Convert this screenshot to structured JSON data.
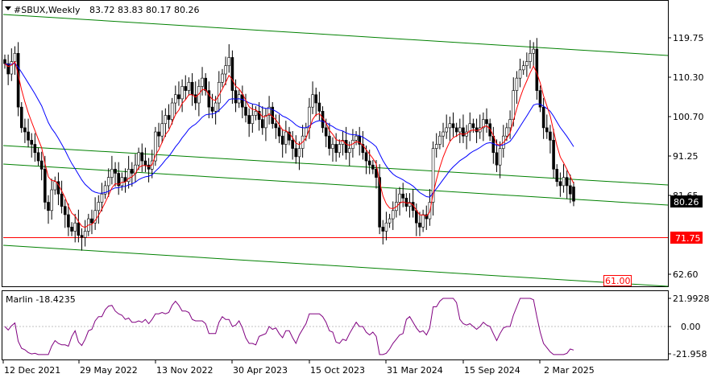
{
  "header": {
    "symbol_label": "#SBUX,Weekly",
    "ohlc_label": "83.72 83.83 80.17 80.26",
    "menu_icon": "triangle-down-icon"
  },
  "price_axis": {
    "ticks": [
      "119.75",
      "110.30",
      "100.70",
      "91.25",
      "81.65",
      "62.60"
    ],
    "current_price_label": "80.26",
    "level_label_red": "71.75",
    "target_label": "61.00"
  },
  "indicator": {
    "title": "Marlin -18.4235",
    "ticks": [
      "21.9928",
      "0.00",
      "-21.958"
    ]
  },
  "time_axis": {
    "labels": [
      "12 Dec 2021",
      "29 May 2022",
      "13 Nov 2022",
      "30 Apr 2023",
      "15 Oct 2023",
      "31 Mar 2024",
      "15 Sep 2024",
      "2 Mar 2025"
    ]
  },
  "colors": {
    "candle": "#000000",
    "fast_ma": "#ff0000",
    "slow_ma": "#0000ff",
    "channel": "#008000",
    "support_line": "#ff0000",
    "oscillator": "#800080",
    "target_box": "#ff0000"
  },
  "chart_data": {
    "type": "candlestick",
    "timeframe": "Weekly",
    "symbol": "#SBUX",
    "last_bar": {
      "open": 83.72,
      "high": 83.83,
      "low": 80.17,
      "close": 80.26
    },
    "price_range": [
      57.5,
      128.0
    ],
    "closes_approx": [
      113.5,
      111.0,
      114.0,
      116.0,
      103.0,
      98.0,
      97.0,
      95.0,
      94.0,
      92.0,
      90.0,
      88.0,
      80.0,
      78.0,
      83.0,
      85.0,
      82.0,
      79.0,
      77.0,
      74.0,
      73.0,
      75.0,
      72.0,
      71.5,
      73.0,
      76.0,
      75.0,
      78.0,
      80.0,
      82.0,
      84.0,
      86.0,
      88.0,
      87.0,
      84.0,
      86.0,
      85.0,
      88.0,
      87.0,
      89.0,
      92.0,
      90.0,
      89.0,
      88.0,
      90.0,
      97.0,
      96.0,
      99.0,
      101.0,
      100.0,
      104.0,
      106.0,
      105.0,
      108.0,
      107.0,
      109.0,
      106.0,
      104.0,
      108.0,
      110.0,
      107.0,
      103.0,
      102.0,
      104.0,
      109.0,
      111.0,
      113.0,
      115.0,
      107.0,
      104.0,
      106.0,
      103.0,
      101.0,
      99.0,
      101.0,
      102.0,
      100.0,
      98.0,
      101.0,
      103.0,
      99.0,
      98.0,
      96.0,
      94.0,
      97.0,
      95.0,
      93.0,
      91.0,
      93.0,
      96.0,
      98.0,
      103.0,
      106.0,
      104.0,
      102.0,
      98.0,
      96.0,
      93.0,
      94.0,
      92.0,
      94.0,
      95.0,
      92.0,
      93.0,
      95.0,
      96.0,
      94.0,
      92.0,
      90.0,
      89.0,
      88.0,
      86.0,
      74.0,
      73.0,
      75.0,
      76.0,
      78.0,
      80.0,
      82.0,
      81.0,
      79.0,
      80.0,
      78.0,
      75.0,
      74.0,
      77.0,
      76.0,
      80.0,
      93.0,
      94.0,
      96.0,
      97.0,
      98.0,
      99.0,
      98.0,
      97.0,
      98.0,
      96.0,
      97.0,
      99.0,
      98.0,
      97.0,
      98.0,
      100.0,
      99.0,
      96.0,
      92.0,
      89.0,
      93.0,
      96.0,
      98.0,
      100.0,
      107.0,
      110.0,
      112.0,
      113.0,
      114.0,
      116.0,
      117.0,
      107.0,
      103.0,
      98.0,
      97.0,
      95.0,
      88.0,
      85.0,
      84.0,
      86.0,
      84.0,
      82.0,
      80.26
    ],
    "overlays": [
      {
        "name": "fast MA",
        "color": "#ff0000"
      },
      {
        "name": "slow MA",
        "color": "#0000ff"
      },
      {
        "name": "channel lines",
        "color": "#008000"
      },
      {
        "name": "horizontal level 71.75",
        "color": "#ff0000",
        "value": 71.75
      }
    ],
    "target_level": 61.0,
    "oscillator": {
      "name": "Marlin",
      "last_value": -18.4235,
      "range": [
        -21.958,
        21.9928
      ]
    }
  }
}
